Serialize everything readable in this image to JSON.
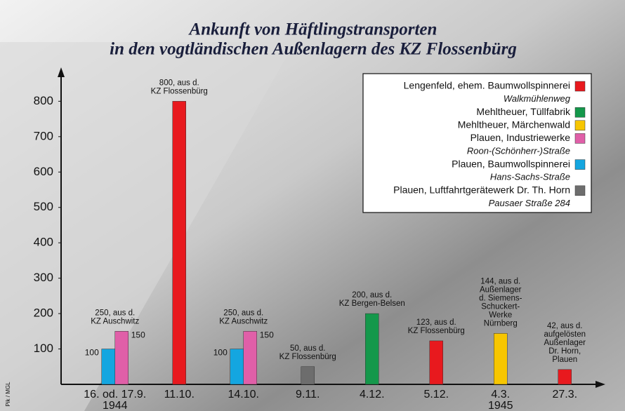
{
  "chart_data": {
    "type": "bar",
    "title": [
      "Ankunft von Häftlingstransporten",
      "in den vogtländischen Außenlagern des KZ Flossenbürg"
    ],
    "categories": [
      "16. od. 17.9.",
      "11.10.",
      "14.10.",
      "9.11.",
      "4.12.",
      "5.12.",
      "4.3.",
      "27.3."
    ],
    "x_group_labels": [
      {
        "category": "16. od. 17.9.",
        "label": "1944"
      },
      {
        "category": "4.3.",
        "label": "1945"
      }
    ],
    "series": [
      {
        "name": "Lengenfeld, ehem. Baumwollspinnerei",
        "address": "Walkmühlenweg",
        "color": "#e8191e",
        "values": [
          null,
          800,
          null,
          null,
          null,
          123,
          null,
          42
        ]
      },
      {
        "name": "Mehltheuer, Tüllfabrik",
        "color": "#14984b",
        "values": [
          null,
          null,
          null,
          null,
          200,
          null,
          null,
          null
        ]
      },
      {
        "name": "Mehltheuer, Märchenwald",
        "color": "#f7c600",
        "values": [
          null,
          null,
          null,
          null,
          null,
          null,
          144,
          null
        ]
      },
      {
        "name": "Plauen, Industriewerke",
        "address": "Roon-(Schönherr-)Straße",
        "color": "#e05fa8",
        "values": [
          150,
          null,
          150,
          null,
          null,
          null,
          null,
          null
        ],
        "show_value_labels": true
      },
      {
        "name": "Plauen, Baumwollspinnerei",
        "address": "Hans-Sachs-Straße",
        "color": "#14a6e0",
        "values": [
          100,
          null,
          100,
          null,
          null,
          null,
          null,
          null
        ],
        "show_value_labels": true
      },
      {
        "name": "Plauen, Luftfahrtgerätewerk Dr. Th. Horn",
        "address": "Pausaer Straße 284",
        "color": "#6d6d6d",
        "values": [
          null,
          null,
          null,
          50,
          null,
          null,
          null,
          null
        ]
      }
    ],
    "bar_order": [
      4,
      3,
      0,
      1,
      2,
      5
    ],
    "annotations": [
      {
        "category": "16. od. 17.9.",
        "text": [
          "250, aus d.",
          "KZ Auschwitz"
        ]
      },
      {
        "category": "11.10.",
        "text": [
          "800, aus d.",
          "KZ Flossenbürg"
        ]
      },
      {
        "category": "14.10.",
        "text": [
          "250, aus d.",
          "KZ Auschwitz"
        ]
      },
      {
        "category": "9.11.",
        "text": [
          "50, aus d.",
          "KZ Flossenbürg"
        ]
      },
      {
        "category": "4.12.",
        "text": [
          "200, aus d.",
          "KZ Bergen-Belsen"
        ]
      },
      {
        "category": "5.12.",
        "text": [
          "123, aus d.",
          "KZ Flossenbürg"
        ]
      },
      {
        "category": "4.3.",
        "text": [
          "144, aus d.",
          "Außenlager",
          "d. Siemens-",
          "Schuckert-",
          "Werke",
          "Nürnberg"
        ]
      },
      {
        "category": "27.3.",
        "text": [
          "42, aus d.",
          "aufgelösten",
          "Außenlager",
          "Dr. Horn,",
          "Plauen"
        ]
      }
    ],
    "ylim": [
      0,
      880
    ],
    "yticks": [
      100,
      200,
      300,
      400,
      500,
      600,
      700,
      800
    ],
    "credit": "Pik / MGL"
  }
}
